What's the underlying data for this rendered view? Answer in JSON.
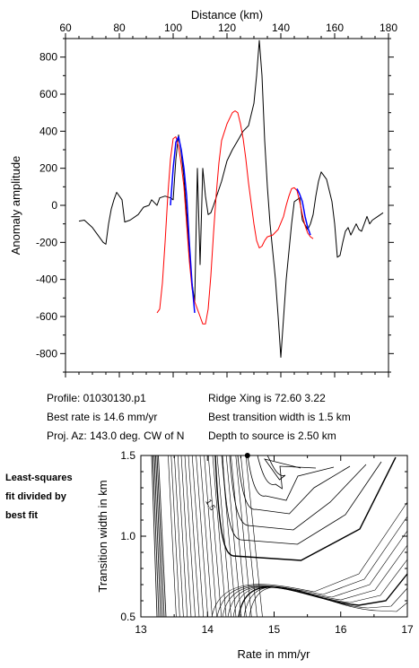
{
  "chart_data": [
    {
      "type": "line",
      "xlabel": "Distance (km)",
      "ylabel": "Anomaly amplitude",
      "xlim": [
        60,
        180
      ],
      "ylim": [
        -900,
        900
      ],
      "xticks": [
        60,
        80,
        100,
        120,
        140,
        160,
        180
      ],
      "yticks": [
        -800,
        -600,
        -400,
        -200,
        0,
        200,
        400,
        600,
        800
      ],
      "grid": false,
      "series": [
        {
          "color": "#000000",
          "points": [
            [
              65,
              -85
            ],
            [
              67,
              -80
            ],
            [
              70,
              -120
            ],
            [
              74,
              -200
            ],
            [
              75,
              -210
            ],
            [
              76,
              -100
            ],
            [
              77,
              -20
            ],
            [
              78,
              30
            ],
            [
              79,
              70
            ],
            [
              81,
              30
            ],
            [
              82,
              -90
            ],
            [
              84,
              -80
            ],
            [
              87,
              -50
            ],
            [
              89,
              -10
            ],
            [
              91,
              0
            ],
            [
              92,
              30
            ],
            [
              94,
              0
            ],
            [
              95,
              40
            ],
            [
              97,
              50
            ],
            [
              99,
              40
            ],
            [
              100,
              30
            ],
            [
              101,
              250
            ],
            [
              102,
              380
            ],
            [
              103,
              280
            ],
            [
              104,
              150
            ],
            [
              105,
              -50
            ],
            [
              106,
              -250
            ],
            [
              107,
              -420
            ],
            [
              108,
              -520
            ],
            [
              109,
              200
            ],
            [
              110,
              -320
            ],
            [
              111,
              200
            ],
            [
              112,
              50
            ],
            [
              113,
              -50
            ],
            [
              114,
              -40
            ],
            [
              115,
              0
            ],
            [
              118,
              130
            ],
            [
              120,
              240
            ],
            [
              122,
              300
            ],
            [
              124,
              350
            ],
            [
              126,
              400
            ],
            [
              128,
              430
            ],
            [
              130,
              550
            ],
            [
              131,
              700
            ],
            [
              132,
              890
            ],
            [
              133,
              700
            ],
            [
              134,
              350
            ],
            [
              135,
              100
            ],
            [
              136,
              -100
            ],
            [
              137,
              -250
            ],
            [
              138,
              -400
            ],
            [
              139,
              -600
            ],
            [
              140,
              -820
            ],
            [
              142,
              -400
            ],
            [
              144,
              -100
            ],
            [
              145,
              20
            ],
            [
              147,
              40
            ],
            [
              148,
              -80
            ],
            [
              150,
              -130
            ],
            [
              151,
              -100
            ],
            [
              152,
              -50
            ],
            [
              153,
              50
            ],
            [
              154,
              130
            ],
            [
              155,
              180
            ],
            [
              157,
              140
            ],
            [
              159,
              20
            ],
            [
              160,
              -100
            ],
            [
              161,
              -280
            ],
            [
              162,
              -270
            ],
            [
              163,
              -200
            ],
            [
              164,
              -140
            ],
            [
              165,
              -120
            ],
            [
              166,
              -160
            ],
            [
              167,
              -130
            ],
            [
              168,
              -100
            ],
            [
              169,
              -130
            ],
            [
              170,
              -140
            ],
            [
              172,
              -60
            ],
            [
              173,
              -100
            ],
            [
              174,
              -80
            ],
            [
              176,
              -60
            ],
            [
              178,
              -40
            ]
          ]
        },
        {
          "color": "#ff0000",
          "points": [
            [
              94,
              -580
            ],
            [
              95,
              -560
            ],
            [
              96,
              -420
            ],
            [
              97,
              -200
            ],
            [
              98,
              50
            ],
            [
              99,
              250
            ],
            [
              100,
              360
            ],
            [
              101,
              370
            ],
            [
              102,
              320
            ],
            [
              103,
              220
            ],
            [
              104,
              100
            ],
            [
              105,
              -100
            ],
            [
              106,
              -300
            ],
            [
              107,
              -450
            ],
            [
              108,
              -520
            ],
            [
              109,
              -560
            ],
            [
              110,
              -600
            ],
            [
              111,
              -640
            ],
            [
              112,
              -640
            ],
            [
              113,
              -560
            ],
            [
              114,
              -380
            ],
            [
              115,
              -150
            ],
            [
              116,
              60
            ],
            [
              117,
              230
            ],
            [
              118,
              350
            ],
            [
              120,
              440
            ],
            [
              122,
              500
            ],
            [
              123,
              510
            ],
            [
              124,
              500
            ],
            [
              125,
              440
            ],
            [
              126,
              360
            ],
            [
              127,
              250
            ],
            [
              128,
              120
            ],
            [
              129,
              10
            ],
            [
              130,
              -100
            ],
            [
              131,
              -190
            ],
            [
              132,
              -230
            ],
            [
              133,
              -220
            ],
            [
              134,
              -190
            ],
            [
              135,
              -170
            ],
            [
              137,
              -160
            ],
            [
              139,
              -130
            ],
            [
              141,
              -60
            ],
            [
              142,
              0
            ],
            [
              143,
              50
            ],
            [
              144,
              90
            ],
            [
              145,
              95
            ],
            [
              146,
              80
            ],
            [
              147,
              20
            ],
            [
              148,
              -50
            ],
            [
              149,
              -110
            ],
            [
              150,
              -150
            ],
            [
              151,
              -170
            ],
            [
              152,
              -180
            ]
          ]
        },
        {
          "color": "#0000ff",
          "points": [
            [
              99,
              0
            ],
            [
              100,
              200
            ],
            [
              101,
              340
            ],
            [
              102,
              370
            ],
            [
              103,
              300
            ],
            [
              104,
              200
            ],
            [
              105,
              50
            ],
            [
              106,
              -200
            ],
            [
              107,
              -420
            ],
            [
              108,
              -580
            ]
          ]
        },
        {
          "color": "#0000ff",
          "points": [
            [
              146,
              90
            ],
            [
              147,
              60
            ],
            [
              148,
              20
            ],
            [
              149,
              -60
            ],
            [
              150,
              -120
            ],
            [
              151,
              -160
            ]
          ]
        }
      ]
    },
    {
      "type": "contour",
      "xlabel": "Rate in mm/yr",
      "ylabel": "Transition width in km",
      "xlim": [
        13,
        17
      ],
      "ylim": [
        0.5,
        1.5
      ],
      "xticks": [
        13,
        14,
        15,
        16,
        17
      ],
      "yticks": [
        0.5,
        1.0,
        1.5
      ],
      "contour_label": "1.5",
      "best_fit_marker": [
        14.6,
        1.5
      ]
    }
  ],
  "info": {
    "profile": "Profile: 01030130.p1",
    "best_rate": "Best rate is 14.6 mm/yr",
    "proj_az": "Proj. Az: 143.0 deg. CW of N",
    "ridge_xing": "Ridge Xing is 72.60 3.22",
    "best_transition": "Best transition width is 1.5 km",
    "depth": "Depth to source is   2.50 km"
  },
  "side_note": [
    "Least-squares",
    "fit divided by",
    "best fit"
  ]
}
